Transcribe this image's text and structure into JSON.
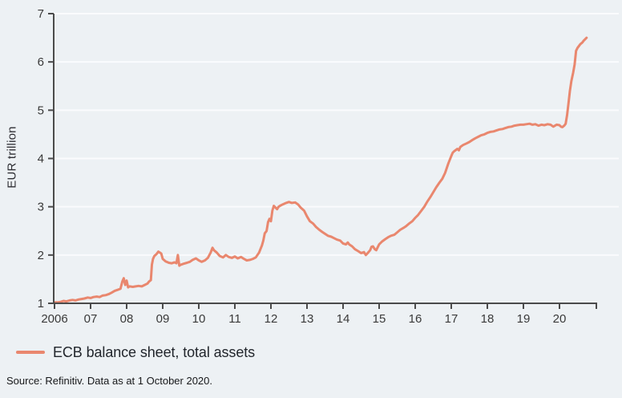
{
  "legend": {
    "label": "ECB balance sheet, total assets",
    "swatch_color": "#e9876e"
  },
  "source": {
    "text": "Source: Refinitiv. Data as at 1 October 2020."
  },
  "colors": {
    "background": "#edf1f4",
    "gridline": "#fafbfd",
    "axis": "#4b4b4b",
    "tick_text": "#3a3a3a",
    "line": "#e9876e"
  },
  "chart_data": {
    "type": "line",
    "title": "",
    "xlabel": "",
    "ylabel": "EUR trillion",
    "ylim": [
      1,
      7
    ],
    "xlim": [
      2006,
      2021.05
    ],
    "grid": "horizontal-only, white lines at integer values",
    "legend_position": "bottom-left below plot",
    "y_ticks": [
      1,
      2,
      3,
      4,
      5,
      6,
      7
    ],
    "x_ticks": [
      "2006",
      "07",
      "08",
      "09",
      "10",
      "11",
      "12",
      "13",
      "14",
      "15",
      "16",
      "17",
      "18",
      "19",
      "20"
    ],
    "x_tick_years": [
      2006,
      2007,
      2008,
      2009,
      2010,
      2011,
      2012,
      2013,
      2014,
      2015,
      2016,
      2017,
      2018,
      2019,
      2020
    ],
    "series": [
      {
        "name": "ECB balance sheet, total assets",
        "color": "#e9876e",
        "points": [
          [
            2006.0,
            1.02
          ],
          [
            2006.08,
            1.02
          ],
          [
            2006.17,
            1.03
          ],
          [
            2006.25,
            1.05
          ],
          [
            2006.33,
            1.04
          ],
          [
            2006.42,
            1.06
          ],
          [
            2006.5,
            1.07
          ],
          [
            2006.58,
            1.06
          ],
          [
            2006.67,
            1.08
          ],
          [
            2006.75,
            1.09
          ],
          [
            2006.83,
            1.1
          ],
          [
            2006.92,
            1.12
          ],
          [
            2007.0,
            1.11
          ],
          [
            2007.08,
            1.13
          ],
          [
            2007.17,
            1.14
          ],
          [
            2007.25,
            1.13
          ],
          [
            2007.33,
            1.16
          ],
          [
            2007.42,
            1.17
          ],
          [
            2007.5,
            1.19
          ],
          [
            2007.58,
            1.22
          ],
          [
            2007.67,
            1.26
          ],
          [
            2007.75,
            1.28
          ],
          [
            2007.83,
            1.3
          ],
          [
            2007.88,
            1.45
          ],
          [
            2007.92,
            1.52
          ],
          [
            2007.96,
            1.38
          ],
          [
            2008.0,
            1.47
          ],
          [
            2008.04,
            1.33
          ],
          [
            2008.08,
            1.35
          ],
          [
            2008.17,
            1.34
          ],
          [
            2008.25,
            1.35
          ],
          [
            2008.33,
            1.36
          ],
          [
            2008.42,
            1.35
          ],
          [
            2008.5,
            1.38
          ],
          [
            2008.58,
            1.41
          ],
          [
            2008.62,
            1.45
          ],
          [
            2008.67,
            1.48
          ],
          [
            2008.7,
            1.8
          ],
          [
            2008.73,
            1.92
          ],
          [
            2008.77,
            1.98
          ],
          [
            2008.83,
            2.02
          ],
          [
            2008.88,
            2.07
          ],
          [
            2008.92,
            2.05
          ],
          [
            2008.96,
            2.03
          ],
          [
            2009.0,
            1.92
          ],
          [
            2009.08,
            1.87
          ],
          [
            2009.17,
            1.84
          ],
          [
            2009.25,
            1.83
          ],
          [
            2009.33,
            1.85
          ],
          [
            2009.38,
            1.83
          ],
          [
            2009.42,
            2.0
          ],
          [
            2009.46,
            1.78
          ],
          [
            2009.5,
            1.8
          ],
          [
            2009.58,
            1.82
          ],
          [
            2009.67,
            1.84
          ],
          [
            2009.75,
            1.86
          ],
          [
            2009.83,
            1.9
          ],
          [
            2009.92,
            1.93
          ],
          [
            2010.0,
            1.89
          ],
          [
            2010.08,
            1.86
          ],
          [
            2010.17,
            1.89
          ],
          [
            2010.25,
            1.94
          ],
          [
            2010.33,
            2.05
          ],
          [
            2010.38,
            2.15
          ],
          [
            2010.42,
            2.1
          ],
          [
            2010.5,
            2.05
          ],
          [
            2010.58,
            1.98
          ],
          [
            2010.67,
            1.95
          ],
          [
            2010.75,
            2.0
          ],
          [
            2010.83,
            1.96
          ],
          [
            2010.92,
            1.94
          ],
          [
            2011.0,
            1.97
          ],
          [
            2011.08,
            1.93
          ],
          [
            2011.17,
            1.96
          ],
          [
            2011.25,
            1.92
          ],
          [
            2011.33,
            1.89
          ],
          [
            2011.42,
            1.9
          ],
          [
            2011.5,
            1.92
          ],
          [
            2011.58,
            1.95
          ],
          [
            2011.67,
            2.05
          ],
          [
            2011.75,
            2.2
          ],
          [
            2011.79,
            2.3
          ],
          [
            2011.83,
            2.45
          ],
          [
            2011.88,
            2.5
          ],
          [
            2011.92,
            2.68
          ],
          [
            2011.96,
            2.75
          ],
          [
            2012.0,
            2.7
          ],
          [
            2012.04,
            2.92
          ],
          [
            2012.08,
            3.02
          ],
          [
            2012.13,
            2.98
          ],
          [
            2012.17,
            2.95
          ],
          [
            2012.21,
            3.0
          ],
          [
            2012.25,
            3.02
          ],
          [
            2012.33,
            3.05
          ],
          [
            2012.42,
            3.08
          ],
          [
            2012.5,
            3.1
          ],
          [
            2012.58,
            3.08
          ],
          [
            2012.67,
            3.09
          ],
          [
            2012.75,
            3.05
          ],
          [
            2012.83,
            2.98
          ],
          [
            2012.92,
            2.92
          ],
          [
            2013.0,
            2.8
          ],
          [
            2013.08,
            2.7
          ],
          [
            2013.17,
            2.65
          ],
          [
            2013.25,
            2.58
          ],
          [
            2013.33,
            2.53
          ],
          [
            2013.42,
            2.48
          ],
          [
            2013.5,
            2.44
          ],
          [
            2013.58,
            2.4
          ],
          [
            2013.67,
            2.38
          ],
          [
            2013.75,
            2.35
          ],
          [
            2013.83,
            2.32
          ],
          [
            2013.92,
            2.3
          ],
          [
            2014.0,
            2.24
          ],
          [
            2014.08,
            2.22
          ],
          [
            2014.13,
            2.26
          ],
          [
            2014.17,
            2.22
          ],
          [
            2014.25,
            2.18
          ],
          [
            2014.33,
            2.12
          ],
          [
            2014.42,
            2.08
          ],
          [
            2014.5,
            2.04
          ],
          [
            2014.58,
            2.06
          ],
          [
            2014.63,
            2.0
          ],
          [
            2014.67,
            2.03
          ],
          [
            2014.75,
            2.1
          ],
          [
            2014.79,
            2.17
          ],
          [
            2014.83,
            2.18
          ],
          [
            2014.88,
            2.12
          ],
          [
            2014.92,
            2.1
          ],
          [
            2015.0,
            2.22
          ],
          [
            2015.08,
            2.28
          ],
          [
            2015.17,
            2.33
          ],
          [
            2015.25,
            2.37
          ],
          [
            2015.33,
            2.4
          ],
          [
            2015.42,
            2.42
          ],
          [
            2015.5,
            2.47
          ],
          [
            2015.58,
            2.52
          ],
          [
            2015.67,
            2.56
          ],
          [
            2015.75,
            2.6
          ],
          [
            2015.83,
            2.65
          ],
          [
            2015.92,
            2.7
          ],
          [
            2016.0,
            2.77
          ],
          [
            2016.08,
            2.83
          ],
          [
            2016.17,
            2.92
          ],
          [
            2016.25,
            3.0
          ],
          [
            2016.33,
            3.1
          ],
          [
            2016.42,
            3.2
          ],
          [
            2016.5,
            3.3
          ],
          [
            2016.58,
            3.4
          ],
          [
            2016.67,
            3.5
          ],
          [
            2016.75,
            3.58
          ],
          [
            2016.83,
            3.7
          ],
          [
            2016.92,
            3.9
          ],
          [
            2017.0,
            4.05
          ],
          [
            2017.04,
            4.12
          ],
          [
            2017.08,
            4.15
          ],
          [
            2017.17,
            4.2
          ],
          [
            2017.21,
            4.17
          ],
          [
            2017.25,
            4.24
          ],
          [
            2017.33,
            4.28
          ],
          [
            2017.42,
            4.31
          ],
          [
            2017.5,
            4.34
          ],
          [
            2017.58,
            4.38
          ],
          [
            2017.67,
            4.42
          ],
          [
            2017.75,
            4.45
          ],
          [
            2017.83,
            4.48
          ],
          [
            2017.92,
            4.5
          ],
          [
            2018.0,
            4.53
          ],
          [
            2018.08,
            4.55
          ],
          [
            2018.17,
            4.56
          ],
          [
            2018.25,
            4.58
          ],
          [
            2018.33,
            4.6
          ],
          [
            2018.42,
            4.61
          ],
          [
            2018.5,
            4.63
          ],
          [
            2018.58,
            4.65
          ],
          [
            2018.67,
            4.66
          ],
          [
            2018.75,
            4.68
          ],
          [
            2018.83,
            4.69
          ],
          [
            2018.92,
            4.7
          ],
          [
            2019.0,
            4.7
          ],
          [
            2019.08,
            4.71
          ],
          [
            2019.17,
            4.72
          ],
          [
            2019.25,
            4.7
          ],
          [
            2019.33,
            4.71
          ],
          [
            2019.42,
            4.68
          ],
          [
            2019.5,
            4.7
          ],
          [
            2019.58,
            4.69
          ],
          [
            2019.67,
            4.71
          ],
          [
            2019.75,
            4.7
          ],
          [
            2019.83,
            4.66
          ],
          [
            2019.92,
            4.7
          ],
          [
            2020.0,
            4.69
          ],
          [
            2020.04,
            4.66
          ],
          [
            2020.08,
            4.65
          ],
          [
            2020.13,
            4.68
          ],
          [
            2020.17,
            4.72
          ],
          [
            2020.21,
            4.9
          ],
          [
            2020.25,
            5.15
          ],
          [
            2020.29,
            5.4
          ],
          [
            2020.33,
            5.6
          ],
          [
            2020.38,
            5.78
          ],
          [
            2020.42,
            5.95
          ],
          [
            2020.46,
            6.23
          ],
          [
            2020.5,
            6.29
          ],
          [
            2020.54,
            6.33
          ],
          [
            2020.58,
            6.37
          ],
          [
            2020.63,
            6.4
          ],
          [
            2020.67,
            6.44
          ],
          [
            2020.71,
            6.47
          ],
          [
            2020.75,
            6.5
          ]
        ]
      }
    ]
  }
}
